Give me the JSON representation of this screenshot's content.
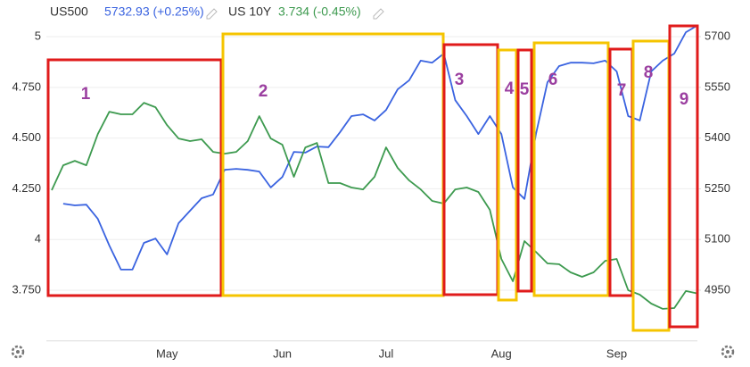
{
  "chart_data": {
    "type": "line",
    "categories": [
      null,
      null,
      null,
      null,
      null,
      null,
      null,
      null,
      null,
      null,
      "May",
      null,
      null,
      null,
      null,
      null,
      null,
      null,
      null,
      null,
      "Jun",
      null,
      null,
      null,
      null,
      null,
      null,
      null,
      null,
      "Jul",
      null,
      null,
      null,
      null,
      null,
      null,
      null,
      null,
      null,
      "Aug",
      null,
      null,
      null,
      null,
      null,
      null,
      null,
      null,
      null,
      "Sep",
      null,
      null,
      null,
      null,
      null,
      null,
      null
    ],
    "series": [
      {
        "name": "US500",
        "quote": "5732.93 (+0.25%)",
        "color": "#3a63e0",
        "axis": "y2",
        "values": [
          null,
          5206,
          5201,
          5203,
          5161,
          5082,
          5011,
          5011,
          5090,
          5103,
          5056,
          5148,
          5185,
          5222,
          5233,
          5306,
          5309,
          5306,
          5301,
          5254,
          5285,
          5359,
          5357,
          5375,
          5373,
          5417,
          5465,
          5470,
          5452,
          5483,
          5544,
          5571,
          5629,
          5623,
          5650,
          5512,
          5465,
          5412,
          5465,
          5412,
          5254,
          5220,
          5412,
          5565,
          5613,
          5623,
          5623,
          5621,
          5629,
          5597,
          5465,
          5452,
          5597,
          5629,
          5650,
          5713,
          5733
        ]
      },
      {
        "name": "US 10Y",
        "quote": "3.734 (-0.45%)",
        "color": "#3d9a4f",
        "values": [
          4.243,
          4.366,
          4.388,
          4.366,
          4.52,
          4.63,
          4.617,
          4.617,
          4.674,
          4.652,
          4.564,
          4.498,
          4.485,
          4.494,
          4.432,
          4.423,
          4.432,
          4.485,
          4.608,
          4.498,
          4.467,
          4.309,
          4.454,
          4.476,
          4.278,
          4.278,
          4.256,
          4.247,
          4.309,
          4.454,
          4.353,
          4.291,
          4.247,
          4.19,
          4.177,
          4.247,
          4.256,
          4.234,
          4.146,
          3.904,
          3.794,
          3.992,
          3.939,
          3.882,
          3.878,
          3.838,
          3.816,
          3.838,
          3.895,
          3.904,
          3.75,
          3.728,
          3.684,
          3.658,
          3.662,
          3.746,
          3.734
        ]
      }
    ],
    "ylim": [
      3.5,
      5.1
    ],
    "yticks": [
      {
        "value": 3.75,
        "label": "3.750"
      },
      4,
      {
        "value": 4.25,
        "label": "4.250"
      },
      {
        "value": 4.5,
        "label": "4.500"
      },
      {
        "value": 4.75,
        "label": "4.750"
      },
      5
    ],
    "y2lim": [
      4800,
      5760
    ],
    "y2ticks": [
      4950,
      5100,
      5250,
      5400,
      5550,
      5700
    ],
    "grid": true,
    "annotations": [
      "1",
      "2",
      "3",
      "4",
      "5",
      "6",
      "7",
      "8",
      "9"
    ]
  }
}
